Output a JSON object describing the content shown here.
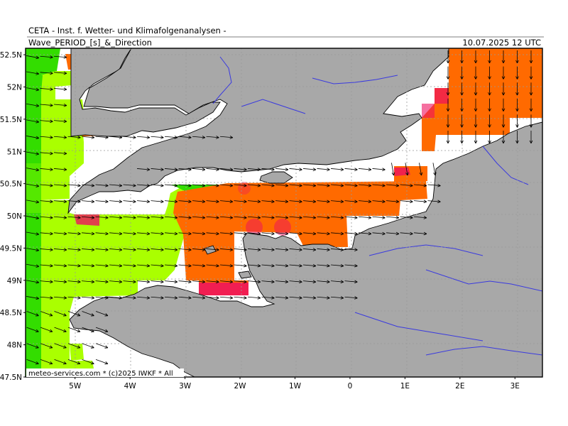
{
  "header": {
    "title": "CETA - Inst. f. Wetter- und Klimafolgenanalysen -",
    "subtitle": "Wave_PERIOD_[s]_&_Direction",
    "datetime": "10.07.2025 12 UTC"
  },
  "footer": {
    "credit": "meteo-services.com * (c)2025 IWKF * All"
  },
  "map": {
    "lon_range": [
      -5.9,
      3.5
    ],
    "lat_range": [
      47.5,
      52.6
    ],
    "lat_ticks": [
      "52.5N",
      "52N",
      "51.5N",
      "51N",
      "50.5N",
      "50N",
      "49.5N",
      "49N",
      "48.5N",
      "48N",
      "47.5N"
    ],
    "lon_ticks": [
      "5W",
      "4W",
      "3W",
      "2W",
      "1W",
      "0",
      "1E",
      "2E",
      "3E"
    ],
    "land_color": "#a8a8a8",
    "sea_color": "#ffffff",
    "coast_color": "#000000",
    "river_color": "#3a3adf",
    "period_colors": {
      "long": "#33dd00",
      "mid": "#aaff00",
      "short": "#ff6a00",
      "shortest": "#ee1060"
    }
  }
}
